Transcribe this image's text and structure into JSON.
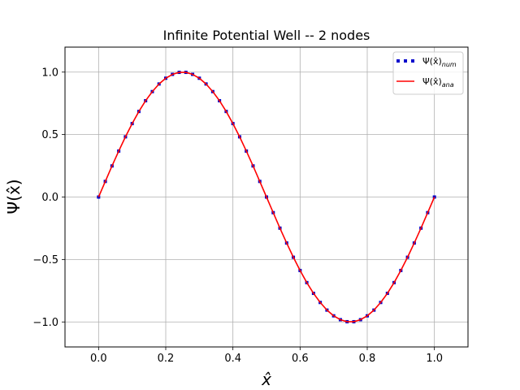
{
  "chart_data": {
    "type": "line",
    "title": "Infinite Potential Well -- 2 nodes",
    "xlabel": "x̂",
    "ylabel": "Ψ(x̂)",
    "xlim": [
      -0.1,
      1.1
    ],
    "ylim": [
      -1.2,
      1.2
    ],
    "xticks": [
      0.0,
      0.2,
      0.4,
      0.6,
      0.8,
      1.0
    ],
    "xtick_labels": [
      "0.0",
      "0.2",
      "0.4",
      "0.6",
      "0.8",
      "1.0"
    ],
    "yticks": [
      -1.0,
      -0.5,
      0.0,
      0.5,
      1.0
    ],
    "ytick_labels": [
      "−1.0",
      "−0.5",
      "0.0",
      "0.5",
      "1.0"
    ],
    "grid": true,
    "legend_position": "top-right",
    "series": [
      {
        "name": "Ψ(x̂)num",
        "style": "dotted",
        "color": "#0000cc",
        "x": [
          0.0,
          0.02,
          0.04,
          0.06,
          0.08,
          0.1,
          0.12,
          0.14,
          0.16,
          0.18,
          0.2,
          0.22,
          0.24,
          0.26,
          0.28,
          0.3,
          0.32,
          0.34,
          0.36,
          0.38,
          0.4,
          0.42,
          0.44,
          0.46,
          0.48,
          0.5,
          0.52,
          0.54,
          0.56,
          0.58,
          0.6,
          0.62,
          0.64,
          0.66,
          0.68,
          0.7,
          0.72,
          0.74,
          0.76,
          0.78,
          0.8,
          0.82,
          0.84,
          0.86,
          0.88,
          0.9,
          0.92,
          0.94,
          0.96,
          0.98,
          1.0
        ],
        "y": [
          0.0,
          0.125,
          0.249,
          0.368,
          0.482,
          0.588,
          0.685,
          0.771,
          0.844,
          0.905,
          0.951,
          0.982,
          0.998,
          0.998,
          0.982,
          0.951,
          0.905,
          0.844,
          0.771,
          0.685,
          0.588,
          0.482,
          0.368,
          0.249,
          0.125,
          0.0,
          -0.125,
          -0.249,
          -0.368,
          -0.482,
          -0.588,
          -0.685,
          -0.771,
          -0.844,
          -0.905,
          -0.951,
          -0.982,
          -0.998,
          -0.998,
          -0.982,
          -0.951,
          -0.905,
          -0.844,
          -0.771,
          -0.685,
          -0.588,
          -0.482,
          -0.368,
          -0.249,
          -0.125,
          0.0
        ]
      },
      {
        "name": "Ψ(x̂)ana",
        "style": "solid",
        "color": "#ff0000",
        "x": [
          0.0,
          0.02,
          0.04,
          0.06,
          0.08,
          0.1,
          0.12,
          0.14,
          0.16,
          0.18,
          0.2,
          0.22,
          0.24,
          0.26,
          0.28,
          0.3,
          0.32,
          0.34,
          0.36,
          0.38,
          0.4,
          0.42,
          0.44,
          0.46,
          0.48,
          0.5,
          0.52,
          0.54,
          0.56,
          0.58,
          0.6,
          0.62,
          0.64,
          0.66,
          0.68,
          0.7,
          0.72,
          0.74,
          0.76,
          0.78,
          0.8,
          0.82,
          0.84,
          0.86,
          0.88,
          0.9,
          0.92,
          0.94,
          0.96,
          0.98,
          1.0
        ],
        "y": [
          0.0,
          0.125,
          0.249,
          0.368,
          0.482,
          0.588,
          0.685,
          0.771,
          0.844,
          0.905,
          0.951,
          0.982,
          0.998,
          0.998,
          0.982,
          0.951,
          0.905,
          0.844,
          0.771,
          0.685,
          0.588,
          0.482,
          0.368,
          0.249,
          0.125,
          0.0,
          -0.125,
          -0.249,
          -0.368,
          -0.482,
          -0.588,
          -0.685,
          -0.771,
          -0.844,
          -0.905,
          -0.951,
          -0.982,
          -0.998,
          -0.998,
          -0.982,
          -0.951,
          -0.905,
          -0.844,
          -0.771,
          -0.685,
          -0.588,
          -0.482,
          -0.368,
          -0.249,
          -0.125,
          0.0
        ]
      }
    ],
    "legend": [
      {
        "base": "Ψ(x̂)",
        "sub": "num"
      },
      {
        "base": "Ψ(x̂)",
        "sub": "ana"
      }
    ]
  }
}
